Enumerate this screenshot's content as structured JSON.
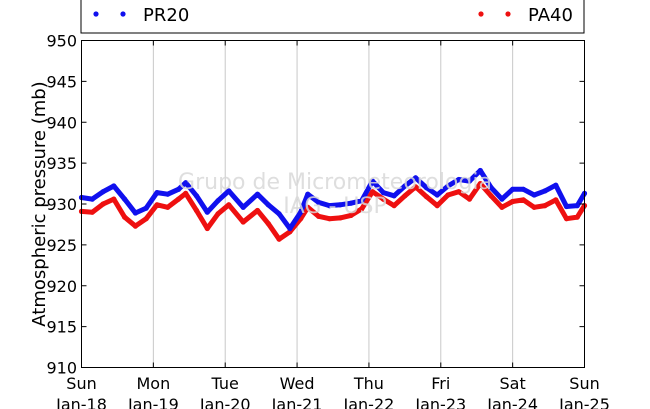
{
  "chart_data": {
    "type": "scatter",
    "ylabel": "Atmospheric pressure (mb)",
    "ylim": [
      910,
      950
    ],
    "yticks": [
      910,
      915,
      920,
      925,
      930,
      935,
      940,
      945,
      950
    ],
    "xlim_days": [
      18,
      25
    ],
    "xticks": [
      {
        "day": "Sun",
        "date": "Jan-18"
      },
      {
        "day": "Mon",
        "date": "Jan-19"
      },
      {
        "day": "Tue",
        "date": "Jan-20"
      },
      {
        "day": "Wed",
        "date": "Jan-21"
      },
      {
        "day": "Thu",
        "date": "Jan-22"
      },
      {
        "day": "Fri",
        "date": "Jan-23"
      },
      {
        "day": "Sat",
        "date": "Jan-24"
      },
      {
        "day": "Sun",
        "date": "Jan-25"
      }
    ],
    "grid": "vertical",
    "legend_position": "top",
    "watermark": [
      "Grupo de Micrometeorologia",
      "IAG - USP"
    ],
    "series": [
      {
        "name": "PR20",
        "color": "#1010ee",
        "x_days": [
          18.0,
          18.15,
          18.3,
          18.45,
          18.6,
          18.75,
          18.9,
          19.05,
          19.2,
          19.35,
          19.45,
          19.6,
          19.75,
          19.9,
          20.05,
          20.25,
          20.45,
          20.6,
          20.75,
          20.9,
          21.05,
          21.15,
          21.3,
          21.45,
          21.6,
          21.75,
          21.9,
          22.05,
          22.2,
          22.35,
          22.5,
          22.65,
          22.8,
          22.95,
          23.1,
          23.25,
          23.4,
          23.55,
          23.7,
          23.85,
          24.0,
          24.15,
          24.3,
          24.45,
          24.6,
          24.75,
          24.9,
          25.0
        ],
        "values": [
          930.8,
          930.6,
          931.5,
          932.2,
          930.6,
          928.9,
          929.5,
          931.4,
          931.2,
          931.8,
          932.6,
          931.0,
          929.0,
          930.4,
          931.6,
          929.6,
          931.2,
          929.9,
          928.8,
          927.0,
          929.0,
          931.2,
          930.2,
          929.8,
          929.9,
          930.1,
          930.4,
          932.8,
          931.4,
          931.0,
          932.2,
          933.2,
          932.0,
          931.1,
          932.2,
          933.0,
          932.8,
          934.1,
          932.0,
          930.6,
          931.8,
          931.8,
          931.1,
          931.6,
          932.3,
          929.7,
          929.8,
          931.3
        ]
      },
      {
        "name": "PA40",
        "color": "#ee1010",
        "x_days": [
          18.0,
          18.15,
          18.3,
          18.45,
          18.6,
          18.75,
          18.9,
          19.05,
          19.2,
          19.35,
          19.45,
          19.6,
          19.75,
          19.9,
          20.05,
          20.25,
          20.45,
          20.6,
          20.75,
          20.9,
          21.05,
          21.15,
          21.3,
          21.45,
          21.6,
          21.75,
          21.9,
          22.05,
          22.2,
          22.35,
          22.5,
          22.65,
          22.8,
          22.95,
          23.1,
          23.25,
          23.4,
          23.55,
          23.7,
          23.85,
          24.0,
          24.15,
          24.3,
          24.45,
          24.6,
          24.75,
          24.9,
          25.0
        ],
        "values": [
          929.1,
          929.0,
          930.0,
          930.6,
          928.4,
          927.3,
          928.2,
          929.9,
          929.6,
          930.6,
          931.3,
          929.2,
          927.0,
          928.8,
          929.9,
          927.8,
          929.2,
          927.6,
          925.7,
          926.6,
          928.2,
          929.6,
          928.5,
          928.2,
          928.3,
          928.6,
          929.4,
          931.5,
          930.6,
          929.8,
          931.0,
          932.1,
          930.9,
          929.8,
          931.1,
          931.5,
          930.6,
          932.5,
          931.0,
          929.6,
          930.3,
          930.5,
          929.6,
          929.8,
          930.5,
          928.2,
          928.4,
          929.8
        ]
      }
    ]
  }
}
